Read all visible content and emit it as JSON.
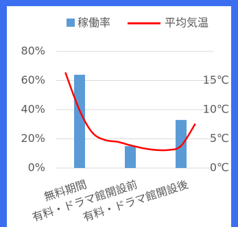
{
  "chart_data": {
    "type": "bar-line",
    "categories": [
      "無料期間",
      "有料・ドラマ館開設前",
      "有料・ドラマ館開設後"
    ],
    "series": [
      {
        "name": "稼働率",
        "type": "bar",
        "color": "#5b9bd5",
        "values": [
          64,
          15,
          33
        ]
      },
      {
        "name": "平均気温",
        "type": "line",
        "axis": "y2",
        "color": "#ff0000",
        "x": [
          -0.28,
          0,
          0.25,
          0.5,
          0.75,
          1,
          1.25,
          1.5,
          1.75,
          2,
          2.28
        ],
        "values": [
          16.4,
          9.9,
          6.1,
          4.8,
          4.5,
          3.9,
          3.4,
          3.1,
          3.1,
          3.8,
          7.6
        ]
      }
    ],
    "ylim": [
      0,
      80
    ],
    "yticks": [
      {
        "value": 0,
        "label": "0%"
      },
      {
        "value": 20,
        "label": "20%"
      },
      {
        "value": 40,
        "label": "40%"
      },
      {
        "value": 60,
        "label": "60%"
      },
      {
        "value": 80,
        "label": "80%"
      }
    ],
    "y2lim": [
      0,
      20
    ],
    "y2ticks": [
      {
        "value": 0,
        "label": "0℃"
      },
      {
        "value": 5,
        "label": "5℃"
      },
      {
        "value": 10,
        "label": "10℃"
      },
      {
        "value": 15,
        "label": "15℃"
      }
    ],
    "grid": true,
    "legend": "top"
  }
}
